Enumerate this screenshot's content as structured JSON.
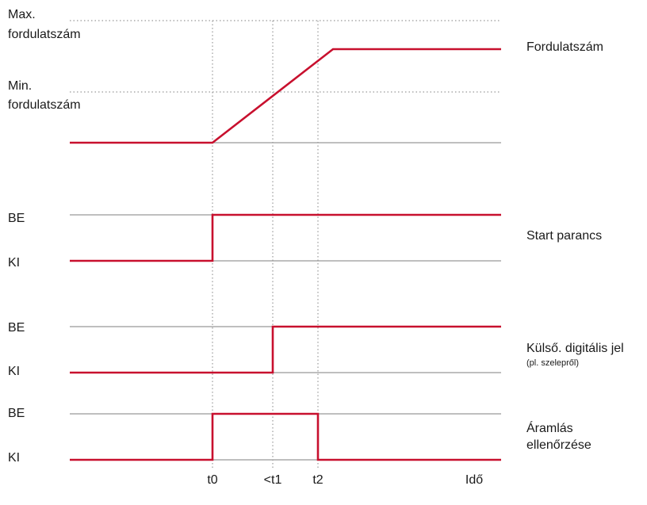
{
  "speed": {
    "max_label": [
      "Max.",
      "fordulatszám"
    ],
    "min_label": [
      "Min.",
      "fordulatszám"
    ],
    "name": "Fordulatszám"
  },
  "signals": [
    {
      "on": "BE",
      "off": "KI",
      "name": [
        "Start parancs"
      ]
    },
    {
      "on": "BE",
      "off": "KI",
      "name": [
        "Külső. digitális jel"
      ],
      "note": "(pl. szelepről)"
    },
    {
      "on": "BE",
      "off": "KI",
      "name": [
        "Áramlás",
        "ellenőrzése"
      ]
    }
  ],
  "time_axis": {
    "t0": "t0",
    "t1": "<t1",
    "t2": "t2",
    "end": "Idő"
  }
}
